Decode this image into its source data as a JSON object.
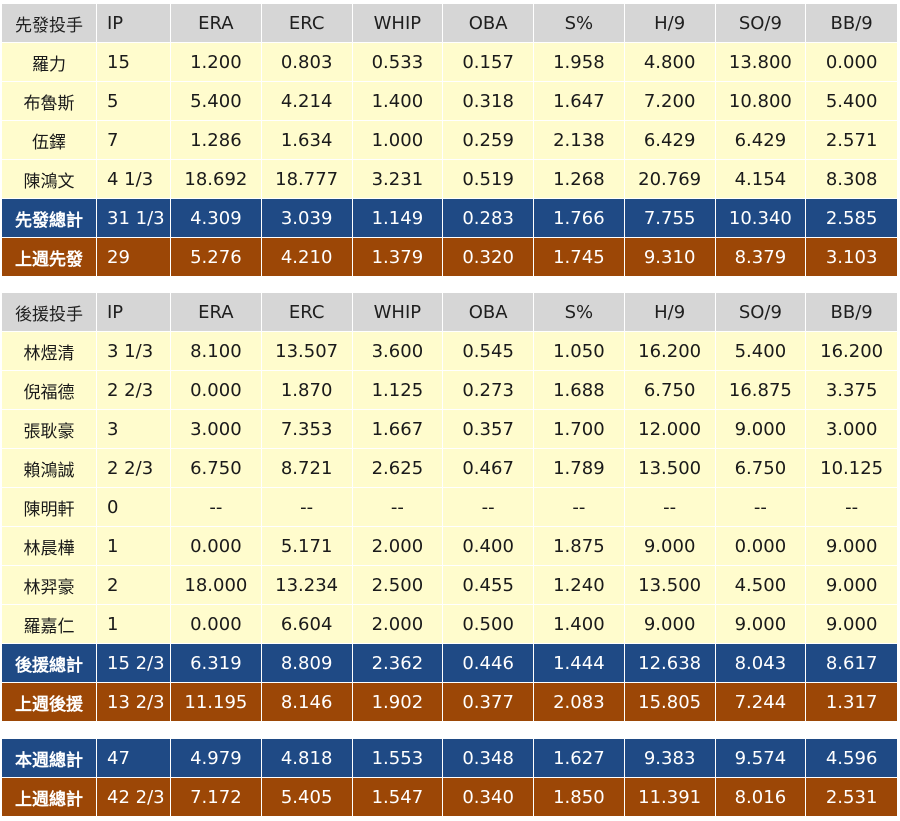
{
  "headers": [
    "IP",
    "ERA",
    "ERC",
    "WHIP",
    "OBA",
    "S%",
    "H/9",
    "SO/9",
    "BB/9"
  ],
  "starters": {
    "title": "先發投手",
    "rows": [
      {
        "name": "羅力",
        "ip": "15",
        "vals": [
          "1.200",
          "0.803",
          "0.533",
          "0.157",
          "1.958",
          "4.800",
          "13.800",
          "0.000"
        ]
      },
      {
        "name": "布魯斯",
        "ip": "5",
        "vals": [
          "5.400",
          "4.214",
          "1.400",
          "0.318",
          "1.647",
          "7.200",
          "10.800",
          "5.400"
        ]
      },
      {
        "name": "伍鐸",
        "ip": "7",
        "vals": [
          "1.286",
          "1.634",
          "1.000",
          "0.259",
          "2.138",
          "6.429",
          "6.429",
          "2.571"
        ]
      },
      {
        "name": "陳鴻文",
        "ip": "4 1/3",
        "vals": [
          "18.692",
          "18.777",
          "3.231",
          "0.519",
          "1.268",
          "20.769",
          "4.154",
          "8.308"
        ]
      }
    ],
    "total": {
      "name": "先發總計",
      "ip": "31 1/3",
      "vals": [
        "4.309",
        "3.039",
        "1.149",
        "0.283",
        "1.766",
        "7.755",
        "10.340",
        "2.585"
      ]
    },
    "prev": {
      "name": "上週先發",
      "ip": "29",
      "vals": [
        "5.276",
        "4.210",
        "1.379",
        "0.320",
        "1.745",
        "9.310",
        "8.379",
        "3.103"
      ]
    }
  },
  "relievers": {
    "title": "後援投手",
    "rows": [
      {
        "name": "林煜清",
        "ip": "3 1/3",
        "vals": [
          "8.100",
          "13.507",
          "3.600",
          "0.545",
          "1.050",
          "16.200",
          "5.400",
          "16.200"
        ]
      },
      {
        "name": "倪福德",
        "ip": "2 2/3",
        "vals": [
          "0.000",
          "1.870",
          "1.125",
          "0.273",
          "1.688",
          "6.750",
          "16.875",
          "3.375"
        ]
      },
      {
        "name": "張耿豪",
        "ip": "3",
        "vals": [
          "3.000",
          "7.353",
          "1.667",
          "0.357",
          "1.700",
          "12.000",
          "9.000",
          "3.000"
        ]
      },
      {
        "name": "賴鴻誠",
        "ip": "2 2/3",
        "vals": [
          "6.750",
          "8.721",
          "2.625",
          "0.467",
          "1.789",
          "13.500",
          "6.750",
          "10.125"
        ]
      },
      {
        "name": "陳明軒",
        "ip": "0",
        "vals": [
          "--",
          "--",
          "--",
          "--",
          "--",
          "--",
          "--",
          "--"
        ]
      },
      {
        "name": "林晨樺",
        "ip": "1",
        "vals": [
          "0.000",
          "5.171",
          "2.000",
          "0.400",
          "1.875",
          "9.000",
          "0.000",
          "9.000"
        ]
      },
      {
        "name": "林羿豪",
        "ip": "2",
        "vals": [
          "18.000",
          "13.234",
          "2.500",
          "0.455",
          "1.240",
          "13.500",
          "4.500",
          "9.000"
        ]
      },
      {
        "name": "羅嘉仁",
        "ip": "1",
        "vals": [
          "0.000",
          "6.604",
          "2.000",
          "0.500",
          "1.400",
          "9.000",
          "9.000",
          "9.000"
        ]
      }
    ],
    "total": {
      "name": "後援總計",
      "ip": "15 2/3",
      "vals": [
        "6.319",
        "8.809",
        "2.362",
        "0.446",
        "1.444",
        "12.638",
        "8.043",
        "8.617"
      ]
    },
    "prev": {
      "name": "上週後援",
      "ip": "13 2/3",
      "vals": [
        "11.195",
        "8.146",
        "1.902",
        "0.377",
        "2.083",
        "15.805",
        "7.244",
        "1.317"
      ]
    }
  },
  "summary": {
    "week": {
      "name": "本週總計",
      "ip": "47",
      "vals": [
        "4.979",
        "4.818",
        "1.553",
        "0.348",
        "1.627",
        "9.383",
        "9.574",
        "4.596"
      ]
    },
    "prev": {
      "name": "上週總計",
      "ip": "42 2/3",
      "vals": [
        "7.172",
        "5.405",
        "1.547",
        "0.340",
        "1.850",
        "11.391",
        "8.016",
        "2.531"
      ]
    }
  }
}
